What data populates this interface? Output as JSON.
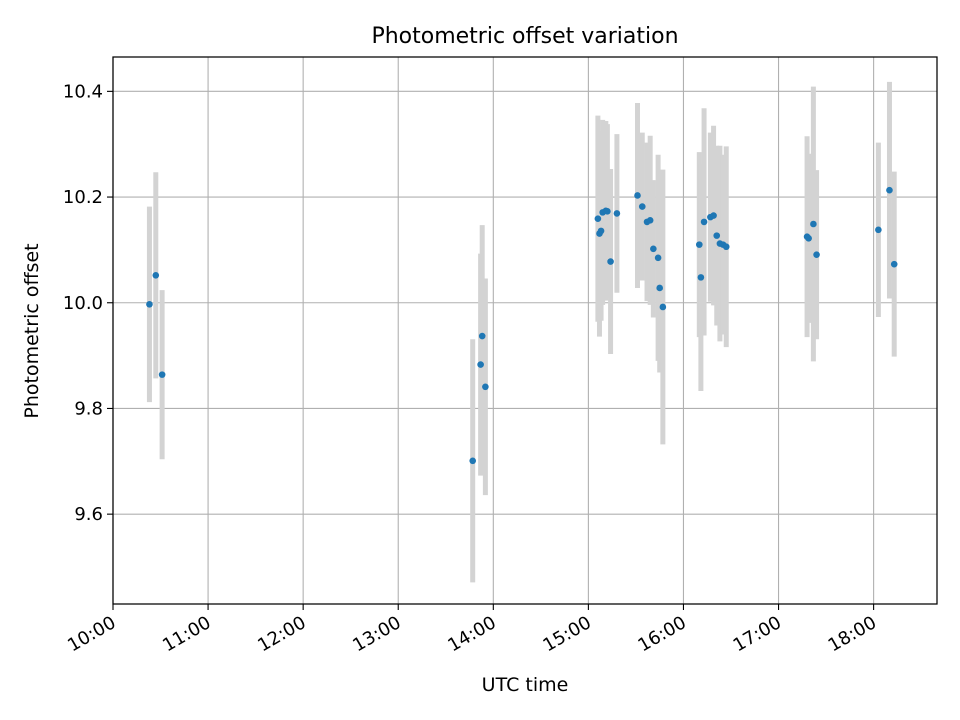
{
  "chart_data": {
    "type": "scatter",
    "title": "Photometric offset variation",
    "xlabel": "UTC time",
    "ylabel": "Photometric offset",
    "xlim": [
      "10:00",
      "18:40"
    ],
    "ylim": [
      9.43,
      10.465
    ],
    "x_ticks": [
      "10:00",
      "11:00",
      "12:00",
      "13:00",
      "14:00",
      "15:00",
      "16:00",
      "17:00",
      "18:00"
    ],
    "y_ticks": [
      "9.6",
      "9.8",
      "10.0",
      "10.2",
      "10.4"
    ],
    "grid": true,
    "colors": {
      "point": "#1f77b4",
      "errorbar": "#d3d3d3",
      "grid": "#b0b0b0"
    },
    "series": [
      {
        "points": [
          {
            "t": "10:23",
            "y": 9.997,
            "err": 0.185
          },
          {
            "t": "10:27",
            "y": 10.052,
            "err": 0.195
          },
          {
            "t": "10:31",
            "y": 9.864,
            "err": 0.16
          },
          {
            "t": "13:47",
            "y": 9.701,
            "err": 0.23
          },
          {
            "t": "13:52",
            "y": 9.883,
            "err": 0.21
          },
          {
            "t": "13:53",
            "y": 9.937,
            "err": 0.21
          },
          {
            "t": "13:55",
            "y": 9.841,
            "err": 0.205
          },
          {
            "t": "15:06",
            "y": 10.159,
            "err": 0.195
          },
          {
            "t": "15:07",
            "y": 10.131,
            "err": 0.195
          },
          {
            "t": "15:08",
            "y": 10.136,
            "err": 0.17
          },
          {
            "t": "15:09",
            "y": 10.171,
            "err": 0.175
          },
          {
            "t": "15:11",
            "y": 10.174,
            "err": 0.17
          },
          {
            "t": "15:12",
            "y": 10.173,
            "err": 0.165
          },
          {
            "t": "15:14",
            "y": 10.078,
            "err": 0.175
          },
          {
            "t": "15:18",
            "y": 10.169,
            "err": 0.15
          },
          {
            "t": "15:31",
            "y": 10.203,
            "err": 0.175
          },
          {
            "t": "15:34",
            "y": 10.182,
            "err": 0.14
          },
          {
            "t": "15:37",
            "y": 10.153,
            "err": 0.15
          },
          {
            "t": "15:39",
            "y": 10.156,
            "err": 0.16
          },
          {
            "t": "15:41",
            "y": 10.102,
            "err": 0.13
          },
          {
            "t": "15:44",
            "y": 10.085,
            "err": 0.195
          },
          {
            "t": "15:45",
            "y": 10.028,
            "err": 0.16
          },
          {
            "t": "15:47",
            "y": 9.992,
            "err": 0.26
          },
          {
            "t": "16:10",
            "y": 10.11,
            "err": 0.175
          },
          {
            "t": "16:11",
            "y": 10.048,
            "err": 0.215
          },
          {
            "t": "16:13",
            "y": 10.153,
            "err": 0.215
          },
          {
            "t": "16:17",
            "y": 10.162,
            "err": 0.16
          },
          {
            "t": "16:19",
            "y": 10.165,
            "err": 0.17
          },
          {
            "t": "16:21",
            "y": 10.127,
            "err": 0.17
          },
          {
            "t": "16:23",
            "y": 10.112,
            "err": 0.185
          },
          {
            "t": "16:25",
            "y": 10.11,
            "err": 0.17
          },
          {
            "t": "16:27",
            "y": 10.106,
            "err": 0.19
          },
          {
            "t": "17:18",
            "y": 10.125,
            "err": 0.19
          },
          {
            "t": "17:19",
            "y": 10.122,
            "err": 0.16
          },
          {
            "t": "17:22",
            "y": 10.149,
            "err": 0.26
          },
          {
            "t": "17:24",
            "y": 10.091,
            "err": 0.16
          },
          {
            "t": "18:03",
            "y": 10.138,
            "err": 0.165
          },
          {
            "t": "18:10",
            "y": 10.213,
            "err": 0.205
          },
          {
            "t": "18:13",
            "y": 10.073,
            "err": 0.175
          }
        ]
      }
    ]
  }
}
